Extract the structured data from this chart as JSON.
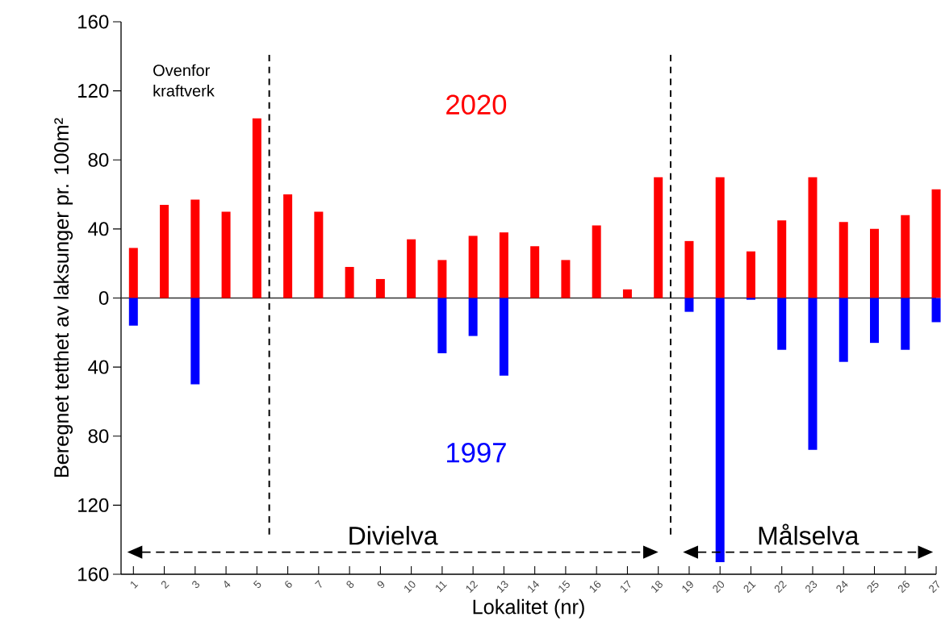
{
  "chart_data": {
    "type": "bar",
    "stacked": true,
    "xlabel": "Lokalitet (nr)",
    "ylabel": "Beregnet tetthet av laksunger pr. 100m²",
    "x": [
      1,
      2,
      3,
      4,
      5,
      6,
      7,
      8,
      9,
      10,
      11,
      12,
      13,
      14,
      15,
      16,
      17,
      18,
      19,
      20,
      21,
      22,
      23,
      24,
      25,
      26,
      27
    ],
    "series": [
      {
        "name": "2020",
        "color": "#ff0000",
        "values": [
          29,
          54,
          57,
          50,
          104,
          60,
          50,
          18,
          11,
          34,
          22,
          36,
          38,
          30,
          22,
          42,
          5,
          70,
          33,
          70,
          27,
          45,
          70,
          44,
          40,
          48,
          63
        ]
      },
      {
        "name": "1997",
        "color": "#0000ff",
        "values": [
          -16,
          0,
          -50,
          0,
          0,
          0,
          0,
          0,
          0,
          0,
          -32,
          -22,
          -45,
          0,
          0,
          0,
          0,
          0,
          -8,
          -153,
          -1,
          -30,
          -88,
          -37,
          -26,
          -30,
          -14
        ]
      }
    ],
    "xlim": [
      0.6,
      27
    ],
    "xticks": [
      1,
      2,
      3,
      4,
      5,
      6,
      7,
      8,
      9,
      10,
      11,
      12,
      13,
      14,
      15,
      16,
      17,
      18,
      19,
      20,
      21,
      22,
      23,
      24,
      25,
      26,
      27
    ],
    "ylim": [
      -160,
      160
    ],
    "yticks": [
      {
        "value": -160,
        "label": "160"
      },
      {
        "value": -120,
        "label": "120"
      },
      {
        "value": -80,
        "label": "80"
      },
      {
        "value": -40,
        "label": "40"
      },
      0,
      40,
      80,
      120,
      160
    ],
    "ref_lines": [
      {
        "axis": "x",
        "value": 5.4,
        "line_style": "dashed",
        "color": "#000000"
      },
      {
        "axis": "x",
        "value": 18.4,
        "line_style": "dashed",
        "color": "#000000"
      }
    ],
    "annotations": [
      "Ovenfor kraftverk",
      "Divielva",
      "Målselva"
    ],
    "legend": false
  }
}
